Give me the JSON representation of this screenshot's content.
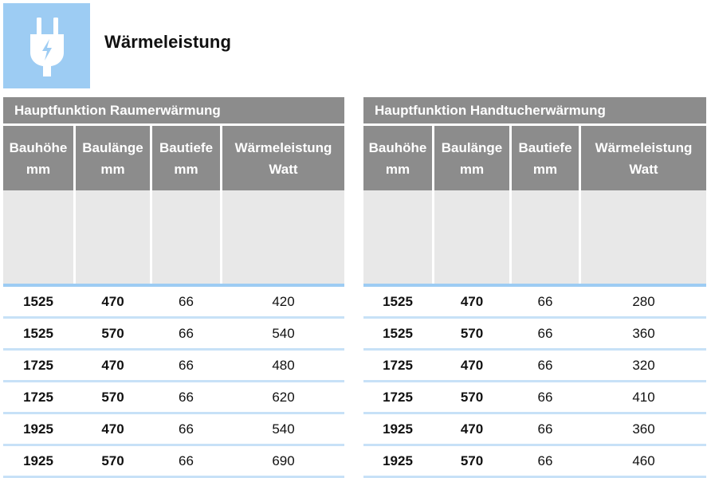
{
  "header": {
    "title": "Wärmeleistung",
    "icon": "power-plug-icon"
  },
  "colors": {
    "accent_blue": "#9dccf3",
    "header_gray": "#8c8c8c",
    "image_gray": "#e8e8e8"
  },
  "tables": [
    {
      "caption": "Hauptfunktion Raumerwärmung",
      "columns": [
        {
          "label": "Bauhöhe",
          "unit": "mm"
        },
        {
          "label": "Baulänge",
          "unit": "mm"
        },
        {
          "label": "Bautiefe",
          "unit": "mm"
        },
        {
          "label": "Wärmeleistung",
          "unit": "Watt"
        }
      ],
      "rows": [
        [
          "1525",
          "470",
          "66",
          "420"
        ],
        [
          "1525",
          "570",
          "66",
          "540"
        ],
        [
          "1725",
          "470",
          "66",
          "480"
        ],
        [
          "1725",
          "570",
          "66",
          "620"
        ],
        [
          "1925",
          "470",
          "66",
          "540"
        ],
        [
          "1925",
          "570",
          "66",
          "690"
        ]
      ]
    },
    {
      "caption": "Hauptfunktion Handtucherwärmung",
      "columns": [
        {
          "label": "Bauhöhe",
          "unit": "mm"
        },
        {
          "label": "Baulänge",
          "unit": "mm"
        },
        {
          "label": "Bautiefe",
          "unit": "mm"
        },
        {
          "label": "Wärmeleistung",
          "unit": "Watt"
        }
      ],
      "rows": [
        [
          "1525",
          "470",
          "66",
          "280"
        ],
        [
          "1525",
          "570",
          "66",
          "360"
        ],
        [
          "1725",
          "470",
          "66",
          "320"
        ],
        [
          "1725",
          "570",
          "66",
          "410"
        ],
        [
          "1925",
          "470",
          "66",
          "360"
        ],
        [
          "1925",
          "570",
          "66",
          "460"
        ]
      ]
    }
  ]
}
